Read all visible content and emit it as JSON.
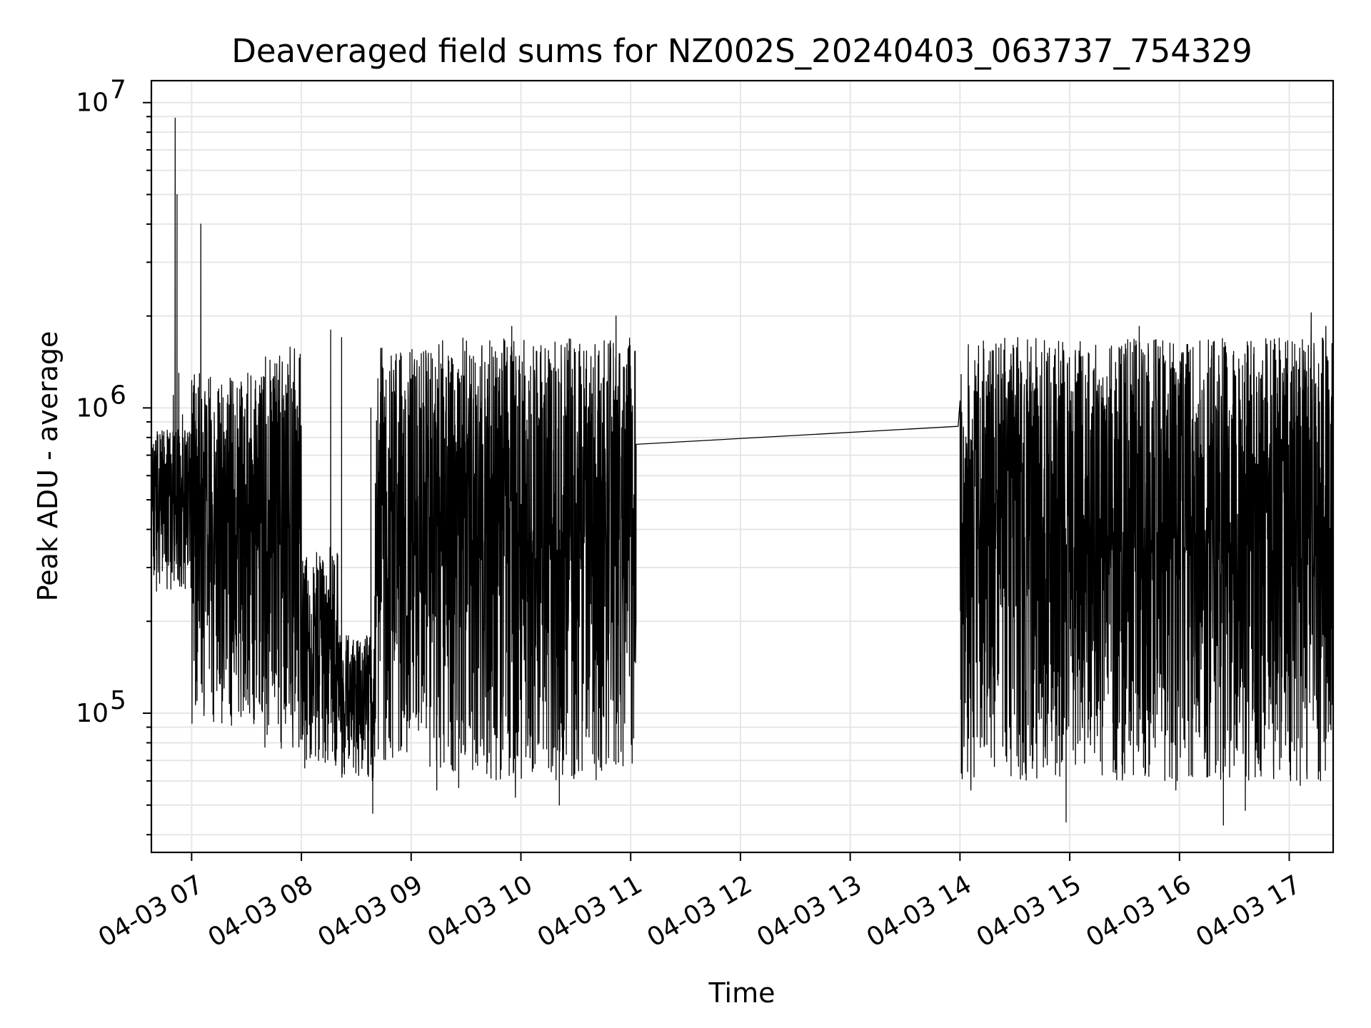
{
  "chart_data": {
    "type": "line",
    "title": "Deaveraged field sums for NZ002S_20240403_063737_754329",
    "xlabel": "Time",
    "ylabel": "Peak ADU - average",
    "yscale": "log",
    "ylim": [
      35000,
      11800000
    ],
    "xlim": [
      "2024-04-03 06:38",
      "2024-04-03 17:24"
    ],
    "grid": "major and minor",
    "x_tick_labels": [
      "04-03 07",
      "04-03 08",
      "04-03 09",
      "04-03 10",
      "04-03 11",
      "04-03 12",
      "04-03 13",
      "04-03 14",
      "04-03 15",
      "04-03 16",
      "04-03 17"
    ],
    "y_tick_labels": [
      {
        "base": "10",
        "exp": "5",
        "value": 100000
      },
      {
        "base": "10",
        "exp": "6",
        "value": 1000000
      },
      {
        "base": "10",
        "exp": "7",
        "value": 10000000
      }
    ],
    "line_color": "#000000",
    "series": [
      {
        "segments": [
          {
            "start": "2024-04-03 06:38",
            "end": "2024-04-03 07:00",
            "low": 250000,
            "high": 850000
          },
          {
            "start": "2024-04-03 07:00",
            "end": "2024-04-03 07:40",
            "low": 90000,
            "high": 1300000
          },
          {
            "start": "2024-04-03 07:40",
            "end": "2024-04-03 08:00",
            "low": 75000,
            "high": 1600000
          },
          {
            "start": "2024-04-03 08:00",
            "end": "2024-04-03 08:20",
            "low": 65000,
            "high": 350000
          },
          {
            "start": "2024-04-03 08:20",
            "end": "2024-04-03 08:40",
            "low": 60000,
            "high": 180000
          },
          {
            "start": "2024-04-03 08:40",
            "end": "2024-04-03 09:10",
            "low": 70000,
            "high": 1600000
          },
          {
            "start": "2024-04-03 09:10",
            "end": "2024-04-03 11:03",
            "low": 60000,
            "high": 1700000
          },
          {
            "start": "2024-04-03 14:00",
            "end": "2024-04-03 17:24",
            "low": 60000,
            "high": 1700000
          }
        ],
        "points": [
          {
            "x": "2024-04-03 06:38",
            "y": 480000
          },
          {
            "x": "2024-04-03 06:40",
            "y": 720000
          },
          {
            "x": "2024-04-03 06:44",
            "y": 560000
          },
          {
            "x": "2024-04-03 06:47",
            "y": 390000
          },
          {
            "x": "2024-04-03 06:50",
            "y": 1100000
          },
          {
            "x": "2024-04-03 06:51",
            "y": 8900000
          },
          {
            "x": "2024-04-03 06:52",
            "y": 5000000
          },
          {
            "x": "2024-04-03 06:53",
            "y": 1300000
          },
          {
            "x": "2024-04-03 06:55",
            "y": 950000
          },
          {
            "x": "2024-04-03 06:58",
            "y": 600000
          },
          {
            "x": "2024-04-03 07:03",
            "y": 110000
          },
          {
            "x": "2024-04-03 07:05",
            "y": 4000000
          },
          {
            "x": "2024-04-03 08:16",
            "y": 1800000
          },
          {
            "x": "2024-04-03 08:22",
            "y": 1700000
          },
          {
            "x": "2024-04-03 08:38",
            "y": 1000000
          },
          {
            "x": "2024-04-03 08:39",
            "y": 47000
          },
          {
            "x": "2024-04-03 09:14",
            "y": 56000
          },
          {
            "x": "2024-04-03 09:26",
            "y": 57000
          },
          {
            "x": "2024-04-03 09:55",
            "y": 1850000
          },
          {
            "x": "2024-04-03 09:57",
            "y": 53000
          },
          {
            "x": "2024-04-03 10:21",
            "y": 50000
          },
          {
            "x": "2024-04-03 10:52",
            "y": 2000000
          },
          {
            "x": "2024-04-03 11:03",
            "y": 760000
          },
          {
            "x": "2024-04-03 13:59",
            "y": 870000
          },
          {
            "x": "2024-04-03 14:01",
            "y": 130000
          },
          {
            "x": "2024-04-03 14:06",
            "y": 56000
          },
          {
            "x": "2024-04-03 14:58",
            "y": 44000
          },
          {
            "x": "2024-04-03 15:38",
            "y": 1850000
          },
          {
            "x": "2024-04-03 15:58",
            "y": 56000
          },
          {
            "x": "2024-04-03 16:24",
            "y": 43000
          },
          {
            "x": "2024-04-03 16:36",
            "y": 48000
          },
          {
            "x": "2024-04-03 17:06",
            "y": 58000
          },
          {
            "x": "2024-04-03 17:12",
            "y": 2050000
          },
          {
            "x": "2024-04-03 17:20",
            "y": 1850000
          },
          {
            "x": "2024-04-03 17:24",
            "y": 270000
          }
        ]
      }
    ]
  }
}
